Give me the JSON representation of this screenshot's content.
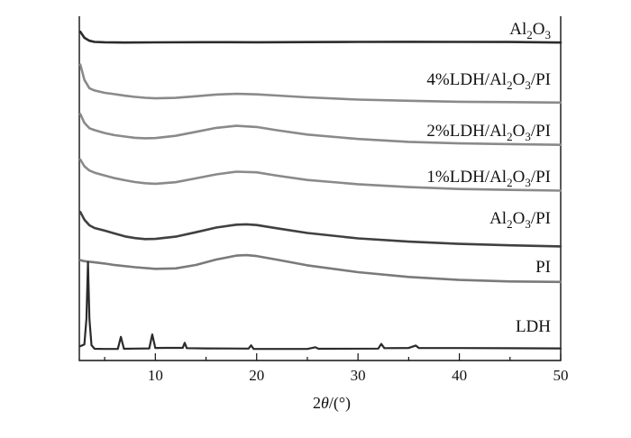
{
  "chart_data": {
    "type": "line",
    "xlabel_parts": [
      "2",
      "θ",
      "/(°)"
    ],
    "xlim": [
      2.5,
      50
    ],
    "ylim": [
      0,
      1
    ],
    "x_ticks": [
      10,
      20,
      30,
      40,
      50
    ],
    "grid": false,
    "legend": "labels beside each curve",
    "series": [
      {
        "name": "Al2O3",
        "label_parts": [
          [
            "Al",
            ""
          ],
          [
            "2",
            "sub"
          ],
          [
            "O",
            ""
          ],
          [
            "3",
            "sub"
          ]
        ],
        "color": "#2b2b2b",
        "x": [
          2.6,
          3.0,
          3.5,
          4.0,
          5.0,
          7.0,
          10.0,
          15.0,
          20.0,
          25.0,
          30.0,
          35.0,
          40.0,
          45.0,
          50.0
        ],
        "y": [
          0.955,
          0.938,
          0.93,
          0.927,
          0.926,
          0.925,
          0.925,
          0.925,
          0.924,
          0.924,
          0.924,
          0.924,
          0.924,
          0.924,
          0.923
        ]
      },
      {
        "name": "4%LDH/Al2O3/PI",
        "label_parts": [
          [
            "4%LDH/Al",
            ""
          ],
          [
            "2",
            "sub"
          ],
          [
            "O",
            ""
          ],
          [
            "3",
            "sub"
          ],
          [
            "/PI",
            ""
          ]
        ],
        "color": "#8a8a8a",
        "x": [
          2.6,
          3.0,
          3.5,
          4.0,
          5.0,
          6.0,
          7.0,
          8.0,
          9.0,
          10.0,
          12.0,
          14.0,
          16.0,
          18.0,
          20.0,
          22.0,
          25.0,
          30.0,
          35.0,
          40.0,
          45.0,
          50.0
        ],
        "y": [
          0.86,
          0.815,
          0.79,
          0.783,
          0.776,
          0.772,
          0.768,
          0.765,
          0.763,
          0.762,
          0.764,
          0.769,
          0.774,
          0.776,
          0.774,
          0.77,
          0.764,
          0.757,
          0.753,
          0.75,
          0.749,
          0.748
        ]
      },
      {
        "name": "2%LDH/Al2O3/PI",
        "label_parts": [
          [
            "2%LDH/Al",
            ""
          ],
          [
            "2",
            "sub"
          ],
          [
            "O",
            ""
          ],
          [
            "3",
            "sub"
          ],
          [
            "/PI",
            ""
          ]
        ],
        "color": "#8a8a8a",
        "x": [
          2.6,
          3.0,
          3.5,
          4.0,
          5.0,
          6.0,
          7.0,
          8.0,
          9.0,
          10.0,
          12.0,
          14.0,
          16.0,
          18.0,
          20.0,
          22.0,
          25.0,
          30.0,
          35.0,
          40.0,
          45.0,
          50.0
        ],
        "y": [
          0.715,
          0.69,
          0.675,
          0.67,
          0.662,
          0.656,
          0.652,
          0.648,
          0.646,
          0.646,
          0.652,
          0.663,
          0.674,
          0.68,
          0.677,
          0.668,
          0.656,
          0.644,
          0.636,
          0.632,
          0.63,
          0.628
        ]
      },
      {
        "name": "1%LDH/Al2O3/PI",
        "label_parts": [
          [
            "1%LDH/Al",
            ""
          ],
          [
            "2",
            "sub"
          ],
          [
            "O",
            ""
          ],
          [
            "3",
            "sub"
          ],
          [
            "/PI",
            ""
          ]
        ],
        "color": "#8a8a8a",
        "x": [
          2.6,
          3.0,
          3.5,
          4.0,
          5.0,
          6.0,
          7.0,
          8.0,
          9.0,
          10.0,
          12.0,
          14.0,
          16.0,
          18.0,
          20.0,
          22.0,
          25.0,
          30.0,
          35.0,
          40.0,
          45.0,
          50.0
        ],
        "y": [
          0.585,
          0.565,
          0.552,
          0.545,
          0.536,
          0.528,
          0.522,
          0.517,
          0.514,
          0.513,
          0.518,
          0.53,
          0.542,
          0.55,
          0.548,
          0.538,
          0.525,
          0.512,
          0.503,
          0.497,
          0.494,
          0.492
        ]
      },
      {
        "name": "Al2O3/PI",
        "label_parts": [
          [
            "Al",
            ""
          ],
          [
            "2",
            "sub"
          ],
          [
            "O",
            ""
          ],
          [
            "3",
            "sub"
          ],
          [
            "/PI",
            ""
          ]
        ],
        "color": "#404040",
        "x": [
          2.6,
          3.0,
          3.5,
          4.0,
          5.0,
          6.0,
          7.0,
          8.0,
          9.0,
          10.0,
          12.0,
          14.0,
          16.0,
          18.0,
          19.0,
          20.0,
          22.0,
          25.0,
          30.0,
          35.0,
          40.0,
          45.0,
          50.0
        ],
        "y": [
          0.43,
          0.408,
          0.392,
          0.385,
          0.378,
          0.37,
          0.362,
          0.357,
          0.354,
          0.354,
          0.36,
          0.372,
          0.385,
          0.393,
          0.394,
          0.392,
          0.383,
          0.37,
          0.355,
          0.346,
          0.34,
          0.336,
          0.333
        ]
      },
      {
        "name": "PI",
        "label_parts": [
          [
            "PI",
            ""
          ]
        ],
        "color": "#7a7a7a",
        "x": [
          2.6,
          3.0,
          4.0,
          5.0,
          6.0,
          8.0,
          10.0,
          12.0,
          14.0,
          16.0,
          18.0,
          19.0,
          20.0,
          22.0,
          25.0,
          30.0,
          35.0,
          40.0,
          45.0,
          50.0
        ],
        "y": [
          0.293,
          0.29,
          0.286,
          0.282,
          0.277,
          0.27,
          0.265,
          0.266,
          0.276,
          0.292,
          0.304,
          0.306,
          0.304,
          0.294,
          0.278,
          0.258,
          0.244,
          0.235,
          0.23,
          0.228
        ]
      },
      {
        "name": "LDH",
        "label_parts": [
          [
            "LDH",
            ""
          ]
        ],
        "color": "#2b2b2b",
        "x": [
          2.6,
          3.0,
          3.2,
          3.35,
          3.5,
          3.7,
          4.0,
          5.0,
          6.3,
          6.6,
          6.9,
          8.0,
          9.4,
          9.7,
          10.0,
          11.0,
          12.7,
          12.9,
          13.1,
          15.0,
          19.2,
          19.45,
          19.7,
          25.0,
          25.8,
          26.1,
          32.0,
          32.3,
          32.6,
          35.0,
          35.7,
          36.0,
          40.0,
          45.0,
          50.0
        ],
        "y": [
          0.04,
          0.045,
          0.12,
          0.285,
          0.12,
          0.045,
          0.035,
          0.035,
          0.035,
          0.07,
          0.035,
          0.035,
          0.035,
          0.075,
          0.035,
          0.035,
          0.035,
          0.05,
          0.035,
          0.035,
          0.035,
          0.045,
          0.035,
          0.035,
          0.04,
          0.035,
          0.035,
          0.048,
          0.035,
          0.035,
          0.042,
          0.035,
          0.035,
          0.035,
          0.035
        ]
      }
    ]
  }
}
